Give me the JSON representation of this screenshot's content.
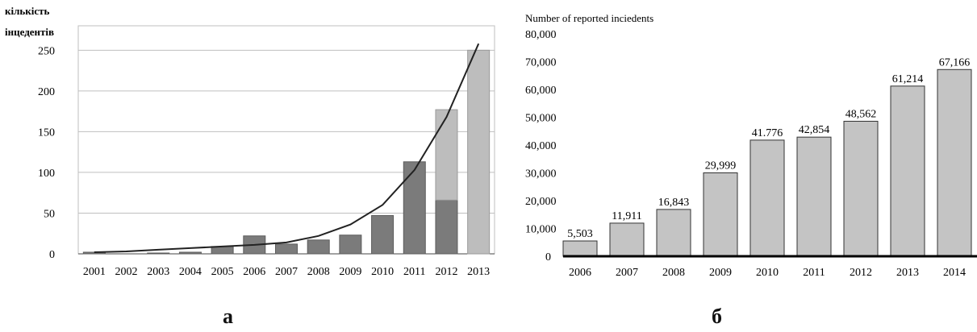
{
  "panels": {
    "a_label": "а",
    "b_label": "б"
  },
  "chart_data": [
    {
      "type": "bar",
      "title": "",
      "ylabel": "кількість інцедентів",
      "xlabel": "",
      "categories": [
        "2001",
        "2002",
        "2003",
        "2004",
        "2005",
        "2006",
        "2007",
        "2008",
        "2009",
        "2010",
        "2011",
        "2012",
        "2013"
      ],
      "series": [
        {
          "values": [
            2,
            0,
            1,
            2,
            9,
            22,
            12,
            17,
            23,
            47,
            113,
            66,
            0
          ]
        },
        {
          "values": [
            0,
            0,
            0,
            0,
            0,
            0,
            0,
            0,
            0,
            0,
            0,
            111,
            250
          ]
        }
      ],
      "trend_line": {
        "type": "exponential",
        "values": [
          2,
          3,
          5,
          7,
          9,
          11,
          14,
          22,
          36,
          60,
          103,
          168,
          258
        ]
      },
      "ylim": [
        0,
        280
      ],
      "yticks": [
        0,
        50,
        100,
        150,
        200,
        250
      ],
      "grid": true,
      "colors": {
        "series_0": "#7b7b7b",
        "series_1": "#bdbdbd",
        "trend": "#222222",
        "grid": "#bfbfbf"
      }
    },
    {
      "type": "bar",
      "title": "Number of reported inciedents",
      "xlabel": "",
      "ylabel": "",
      "categories": [
        "2006",
        "2007",
        "2008",
        "2009",
        "2010",
        "2011",
        "2012",
        "2013",
        "2014"
      ],
      "values": [
        5503,
        11911,
        16843,
        29999,
        41776,
        42854,
        48562,
        61214,
        67166
      ],
      "data_labels": [
        "5,503",
        "11,911",
        "16,843",
        "29,999",
        "41.776",
        "42,854",
        "48,562",
        "61,214",
        "67,166"
      ],
      "ylim": [
        0,
        80000
      ],
      "yticks": [
        "0",
        "10,000",
        "20,000",
        "30,000",
        "40,000",
        "50,000",
        "60,000",
        "70,000",
        "80,000"
      ],
      "grid": false,
      "colors": {
        "bar": "#c4c4c4",
        "bar_stroke": "#333333",
        "axis": "#000000"
      }
    }
  ]
}
